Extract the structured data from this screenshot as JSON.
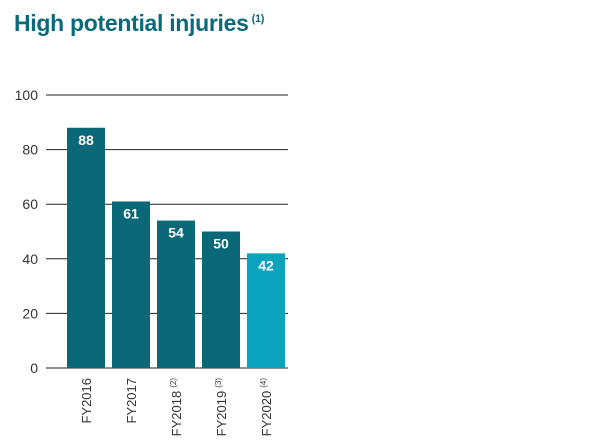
{
  "title": {
    "text": "High potential injuries",
    "footnote": "(1)"
  },
  "colors": {
    "title": "#0b6a7a",
    "bar": "#0a6878",
    "bar_highlight": "#0aa3be",
    "grid": "#222222",
    "tick_text": "#333333",
    "label_text": "#ffffff"
  },
  "chart_data": {
    "type": "bar",
    "categories": [
      "FY2016",
      "FY2017",
      "FY2018",
      "FY2019",
      "FY2020"
    ],
    "category_footnotes": [
      "",
      "",
      "(2)",
      "(3)",
      "(4)"
    ],
    "values": [
      88,
      61,
      54,
      50,
      42
    ],
    "highlight": [
      "FY2020"
    ],
    "ylim": [
      0,
      100
    ],
    "yticks": [
      0,
      20,
      40,
      60,
      80,
      100
    ],
    "ytick_labels": [
      "0",
      "20",
      "40",
      "60",
      "80",
      "100"
    ],
    "grid": true,
    "data_labels": true
  }
}
